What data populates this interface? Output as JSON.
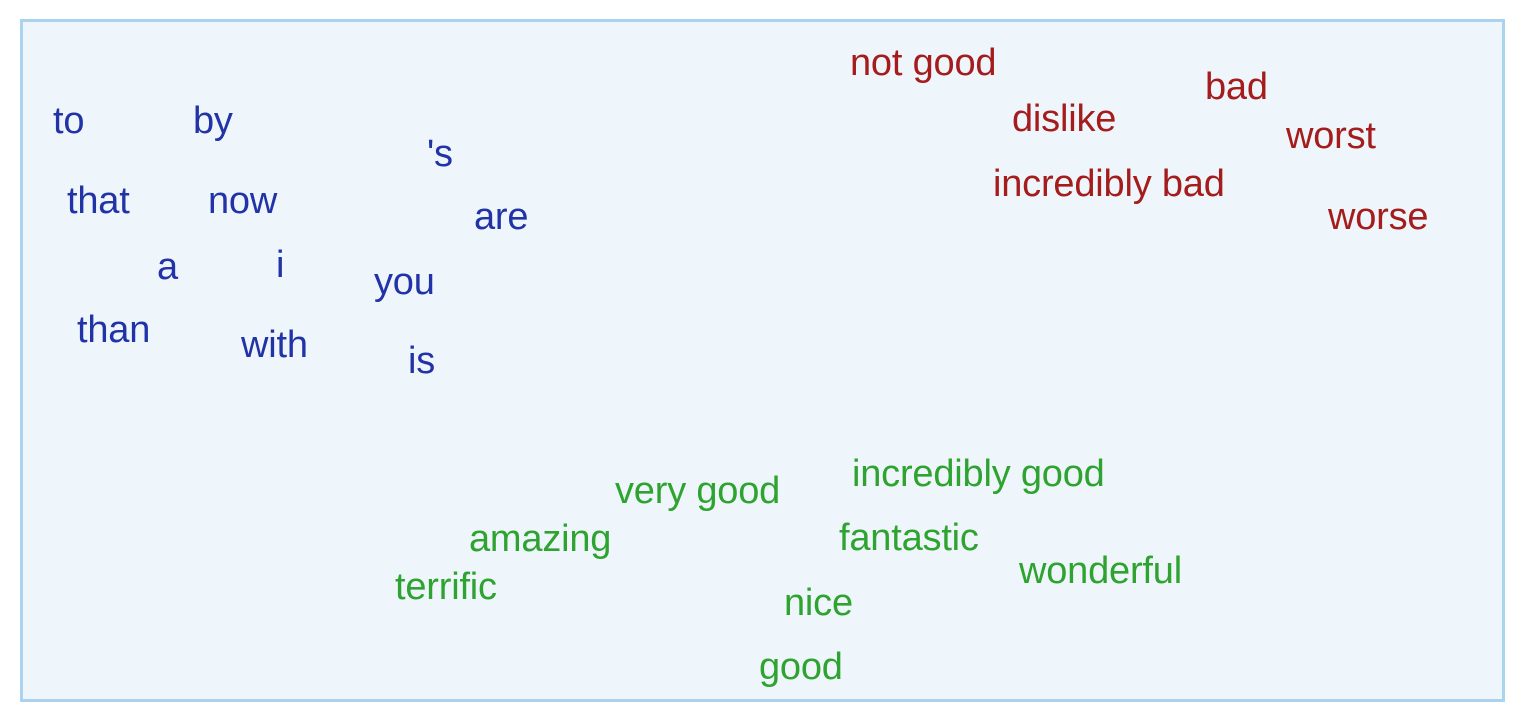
{
  "figure": {
    "neutral_words": [
      "to",
      "by",
      "'s",
      "that",
      "now",
      "are",
      "a",
      "i",
      "you",
      "than",
      "with",
      "is"
    ],
    "negative_words": [
      "not good",
      "bad",
      "dislike",
      "worst",
      "incredibly bad",
      "worse"
    ],
    "positive_words": [
      "very good",
      "incredibly good",
      "amazing",
      "fantastic",
      "terrific",
      "wonderful",
      "nice",
      "good"
    ]
  },
  "colors": {
    "neutral": "#2133a6",
    "negative": "#a41c1c",
    "positive": "#2fa32f",
    "panel_background": "#eef6fc",
    "panel_border": "#a9d3ee"
  }
}
